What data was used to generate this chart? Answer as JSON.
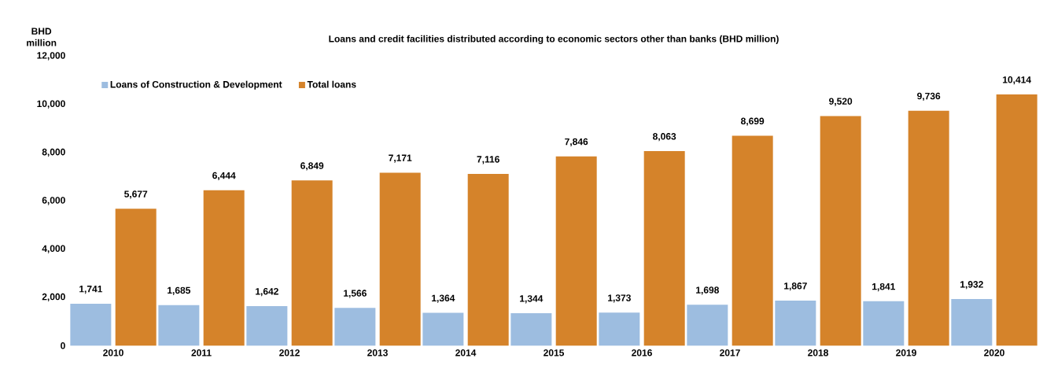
{
  "chart_data": {
    "type": "bar",
    "title": "Loans and credit facilities distributed according to economic sectors other than banks (BHD million)",
    "ylabel": "BHD million",
    "categories": [
      "2010",
      "2011",
      "2012",
      "2013",
      "2014",
      "2015",
      "2016",
      "2017",
      "2018",
      "2019",
      "2020"
    ],
    "series": [
      {
        "name": "Loans of Construction & Development",
        "color": "#9dbde0",
        "values": [
          1741,
          1685,
          1642,
          1566,
          1364,
          1344,
          1373,
          1698,
          1867,
          1841,
          1932
        ],
        "value_labels": [
          "1,741",
          "1,685",
          "1,642",
          "1,566",
          "1,364",
          "1,344",
          "1,373",
          "1,698",
          "1,867",
          "1,841",
          "1,932"
        ]
      },
      {
        "name": "Total loans",
        "color": "#d5832a",
        "values": [
          5677,
          6444,
          6849,
          7171,
          7116,
          7846,
          8063,
          8699,
          9520,
          9736,
          10414
        ],
        "value_labels": [
          "5,677",
          "6,444",
          "6,849",
          "7,171",
          "7,116",
          "7,846",
          "8,063",
          "8,699",
          "9,520",
          "9,736",
          "10,414"
        ]
      }
    ],
    "ylim": [
      0,
      12000
    ],
    "yticks": [
      0,
      {
        "value": 2000,
        "label": "2,000"
      },
      {
        "value": 4000,
        "label": "4,000"
      },
      {
        "value": 6000,
        "label": "6,000"
      },
      {
        "value": 8000,
        "label": "8,000"
      },
      {
        "value": 10000,
        "label": "10,000"
      },
      {
        "value": 12000,
        "label": "12,000"
      }
    ],
    "legend": "top left"
  }
}
